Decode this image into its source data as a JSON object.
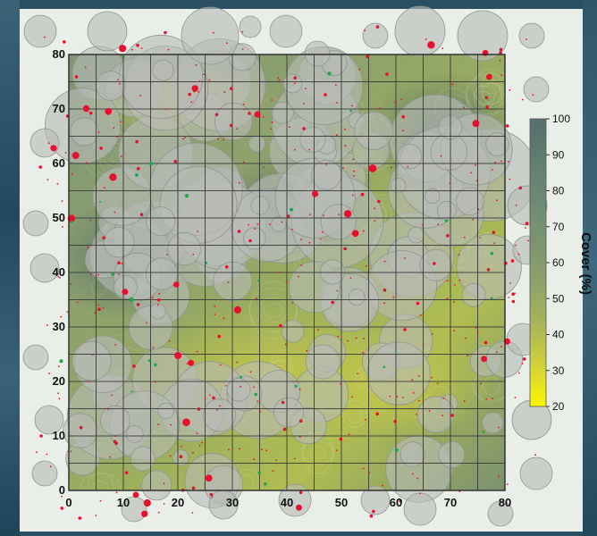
{
  "chart_data": {
    "type": "heatmap",
    "title": "",
    "xlabel": "",
    "ylabel": "",
    "xlim": [
      0,
      80
    ],
    "ylim": [
      0,
      80
    ],
    "x_ticks": [
      "0",
      "10",
      "20",
      "30",
      "40",
      "50",
      "60",
      "70",
      "80"
    ],
    "y_ticks": [
      "0",
      "10",
      "20",
      "30",
      "40",
      "50",
      "60",
      "70",
      "80"
    ],
    "grid": true,
    "grid_step": 5,
    "colorbar": {
      "label": "Cover (%)",
      "range": [
        20,
        100
      ],
      "ticks": [
        "20",
        "30",
        "40",
        "50",
        "60",
        "70",
        "80",
        "90",
        "100"
      ],
      "colors": [
        "#fbf700",
        "#d2d23a",
        "#a9b556",
        "#8ea26a",
        "#7b9570",
        "#6e8a74",
        "#607d71",
        "#556f6d"
      ]
    },
    "colors": {
      "point_red": "#e8102c",
      "point_green": "#19a84a",
      "canopy_fill": "#b8bcb6",
      "canopy_stroke": "#8f9590",
      "grid": "#3a3a3a"
    }
  }
}
